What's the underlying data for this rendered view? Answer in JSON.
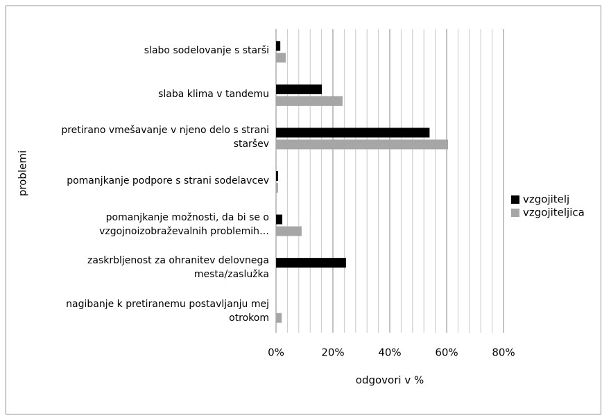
{
  "chart_data": {
    "type": "hbar",
    "xlabel": "odgovori v %",
    "ylabel": "problemi",
    "categories": [
      "slabo sodelovanje s starši",
      "slaba klima v tandemu",
      "pretirano vmešavanje v njeno delo s strani staršev",
      "pomanjkanje podpore s strani sodelavcev",
      "pomanjkanje možnosti, da bi se o vzgojnoizobraževalnih problemih…",
      "zaskrbljenost za ohranitev delovnega mesta/zaslužka",
      "nagibanje k pretiranemu postavljanju mej otrokom"
    ],
    "series": [
      {
        "name": "vzgojitelj",
        "color": "#000000",
        "values": [
          1.5,
          16.1,
          54,
          0.7,
          2.2,
          24.6,
          0
        ]
      },
      {
        "name": "vzgojiteljica",
        "color": "#a6a6a6",
        "values": [
          3.4,
          23.4,
          60.5,
          0.7,
          9,
          0,
          2
        ]
      }
    ],
    "xlim": [
      0,
      80
    ],
    "xticks": [
      {
        "value": 0,
        "label": "0%"
      },
      {
        "value": 20,
        "label": "20%"
      },
      {
        "value": 40,
        "label": "40%"
      },
      {
        "value": 60,
        "label": "60%"
      },
      {
        "value": 80,
        "label": "80%"
      }
    ],
    "xminor_ticks": [
      4,
      8,
      12,
      16,
      24,
      28,
      32,
      36,
      44,
      48,
      52,
      56,
      64,
      68,
      72,
      76
    ],
    "grid": true,
    "legend": "right"
  }
}
